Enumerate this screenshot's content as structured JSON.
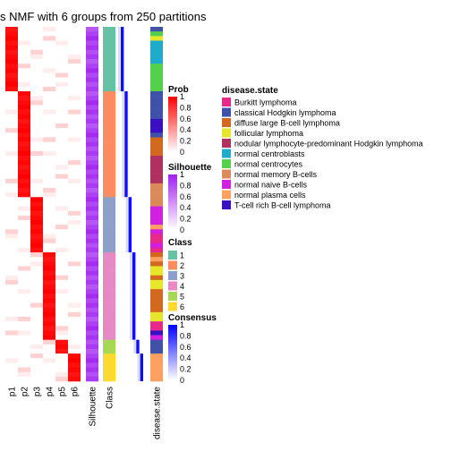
{
  "chart_data": {
    "type": "heatmap",
    "title": "s NMF with 6 groups from 250 partitions",
    "columns": [
      "p1",
      "p2",
      "p3",
      "p4",
      "p5",
      "p6",
      "Silhouette",
      "Class",
      "",
      "disease.state"
    ],
    "membership_columns": [
      "p1",
      "p2",
      "p3",
      "p4",
      "p5",
      "p6"
    ],
    "rows_per_class": [
      {
        "class": "1",
        "rows": 14
      },
      {
        "class": "2",
        "rows": 23
      },
      {
        "class": "3",
        "rows": 12
      },
      {
        "class": "4",
        "rows": 19
      },
      {
        "class": "5",
        "rows": 3
      },
      {
        "class": "6",
        "rows": 6
      }
    ],
    "legends": {
      "prob": {
        "title": "Prob",
        "ticks": [
          "1",
          "0.8",
          "0.6",
          "0.4",
          "0.2",
          "0"
        ],
        "low": "#ffffff",
        "high": "#ff0000"
      },
      "silhouette": {
        "title": "Silhouette",
        "ticks": [
          "1",
          "0.8",
          "0.6",
          "0.4",
          "0.2",
          "0"
        ],
        "low": "#ffffff",
        "high": "#a020f0"
      },
      "class": {
        "title": "Class",
        "levels": [
          {
            "label": "1",
            "color": "#66c2a5"
          },
          {
            "label": "2",
            "color": "#fc8d62"
          },
          {
            "label": "3",
            "color": "#8da0cb"
          },
          {
            "label": "4",
            "color": "#e78ac3"
          },
          {
            "label": "5",
            "color": "#a6d854"
          },
          {
            "label": "6",
            "color": "#ffd92f"
          }
        ]
      },
      "consensus": {
        "title": "Consensus",
        "ticks": [
          "1",
          "0.8",
          "0.6",
          "0.4",
          "0.2",
          "0"
        ],
        "low": "#ffffff",
        "high": "#0000ff"
      },
      "disease_state": {
        "title": "disease.state",
        "levels": [
          {
            "label": "Burkitt lymphoma",
            "color": "#e7298a"
          },
          {
            "label": "classical Hodgkin lymphoma",
            "color": "#3f51a8"
          },
          {
            "label": "diffuse large B-cell lymphoma",
            "color": "#d2691e"
          },
          {
            "label": "follicular lymphoma",
            "color": "#e6e62b"
          },
          {
            "label": "nodular lymphocyte-predominant Hodgkin lymphoma",
            "color": "#b03060"
          },
          {
            "label": "normal centroblasts",
            "color": "#20aacc"
          },
          {
            "label": "normal centrocytes",
            "color": "#55d04a"
          },
          {
            "label": "normal memory B-cells",
            "color": "#dd8a5a"
          },
          {
            "label": "normal naive B-cells",
            "color": "#d020e0"
          },
          {
            "label": "normal plasma cells",
            "color": "#fda060"
          },
          {
            "label": "T-cell rich B-cell lymphoma",
            "color": "#3a10c0"
          }
        ]
      }
    },
    "disease_state_per_row": [
      "classical Hodgkin lymphoma",
      "normal centrocytes",
      "follicular lymphoma",
      "normal centroblasts",
      "normal centroblasts",
      "normal centroblasts",
      "normal centroblasts",
      "normal centroblasts",
      "normal centrocytes",
      "normal centrocytes",
      "normal centrocytes",
      "normal centrocytes",
      "normal centrocytes",
      "normal centrocytes",
      "classical Hodgkin lymphoma",
      "classical Hodgkin lymphoma",
      "classical Hodgkin lymphoma",
      "classical Hodgkin lymphoma",
      "classical Hodgkin lymphoma",
      "classical Hodgkin lymphoma",
      "T-cell rich B-cell lymphoma",
      "T-cell rich B-cell lymphoma",
      "T-cell rich B-cell lymphoma",
      "classical Hodgkin lymphoma",
      "diffuse large B-cell lymphoma",
      "diffuse large B-cell lymphoma",
      "diffuse large B-cell lymphoma",
      "diffuse large B-cell lymphoma",
      "nodular lymphocyte-predominant Hodgkin lymphoma",
      "nodular lymphocyte-predominant Hodgkin lymphoma",
      "nodular lymphocyte-predominant Hodgkin lymphoma",
      "nodular lymphocyte-predominant Hodgkin lymphoma",
      "nodular lymphocyte-predominant Hodgkin lymphoma",
      "nodular lymphocyte-predominant Hodgkin lymphoma",
      "normal memory B-cells",
      "normal memory B-cells",
      "normal memory B-cells",
      "normal memory B-cells",
      "normal memory B-cells",
      "normal naive B-cells",
      "normal naive B-cells",
      "normal naive B-cells",
      "normal naive B-cells",
      "normal plasma cells",
      "normal naive B-cells",
      "Burkitt lymphoma",
      "Burkitt lymphoma",
      "normal naive B-cells",
      "Burkitt lymphoma",
      "diffuse large B-cell lymphoma",
      "normal plasma cells",
      "diffuse large B-cell lymphoma",
      "follicular lymphoma",
      "follicular lymphoma",
      "diffuse large B-cell lymphoma",
      "follicular lymphoma",
      "follicular lymphoma",
      "diffuse large B-cell lymphoma",
      "diffuse large B-cell lymphoma",
      "diffuse large B-cell lymphoma",
      "diffuse large B-cell lymphoma",
      "diffuse large B-cell lymphoma",
      "follicular lymphoma",
      "follicular lymphoma",
      "Burkitt lymphoma",
      "Burkitt lymphoma",
      "T-cell rich B-cell lymphoma",
      "normal naive B-cells",
      "classical Hodgkin lymphoma",
      "classical Hodgkin lymphoma",
      "classical Hodgkin lymphoma",
      "normal plasma cells",
      "normal plasma cells",
      "normal plasma cells",
      "normal plasma cells",
      "normal plasma cells",
      "normal plasma cells"
    ]
  }
}
